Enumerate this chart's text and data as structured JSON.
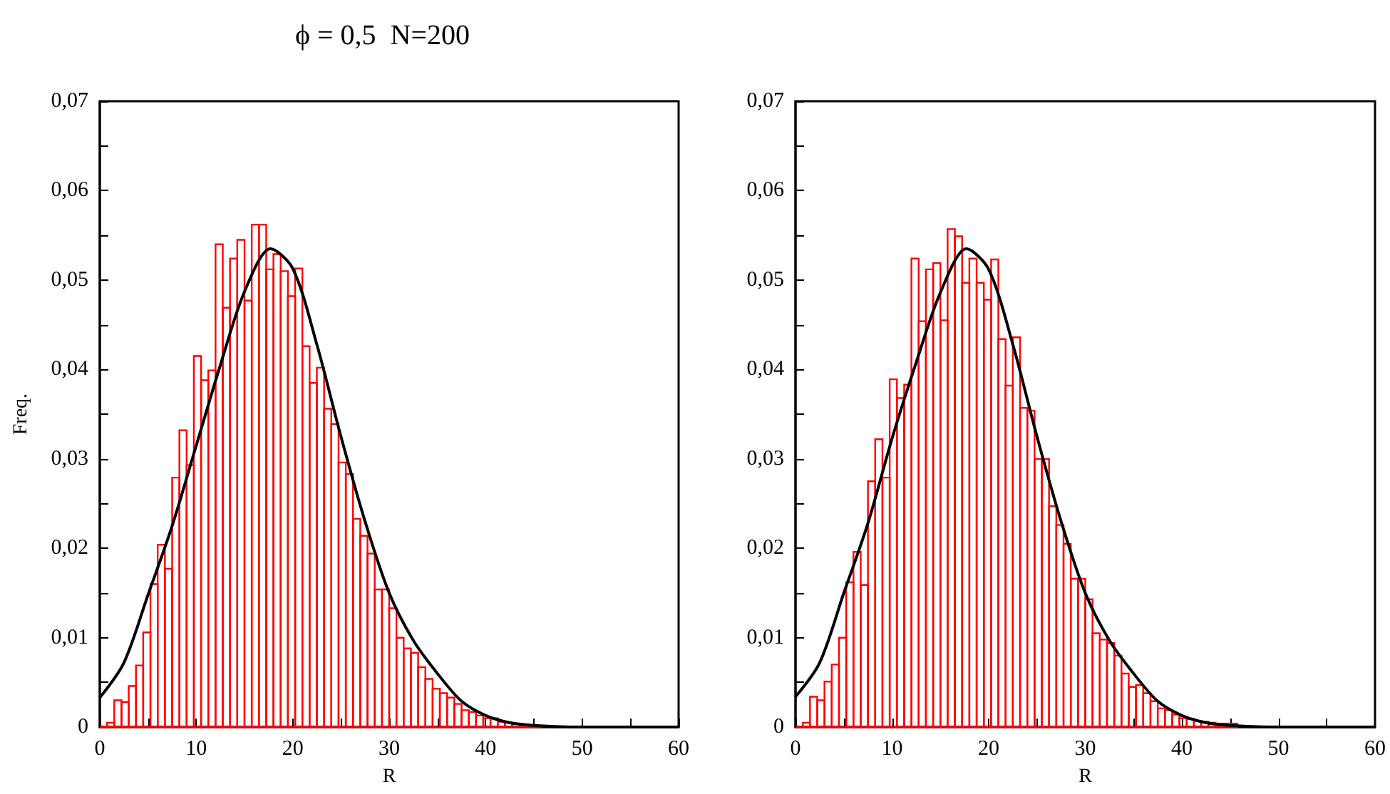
{
  "chart_data": [
    {
      "type": "histogram",
      "title": "ϕ = 0,5  N=200",
      "xlabel": "R",
      "ylabel": "Freq.",
      "xlim": [
        0,
        60
      ],
      "ylim": [
        0,
        0.07
      ],
      "grid": false,
      "xticks": [
        0,
        {
          "value": 5,
          "label": null
        },
        10,
        {
          "value": 15,
          "label": null
        },
        20,
        {
          "value": 25,
          "label": null
        },
        30,
        {
          "value": 35,
          "label": null
        },
        40,
        {
          "value": 45,
          "label": null
        },
        50,
        {
          "value": 55,
          "label": null
        },
        60
      ],
      "yticks": [
        0,
        {
          "value": 0.005,
          "label": null
        },
        {
          "value": 0.01,
          "label": "0,01"
        },
        {
          "value": 0.015,
          "label": null
        },
        {
          "value": 0.02,
          "label": "0,02"
        },
        {
          "value": 0.025,
          "label": null
        },
        {
          "value": 0.03,
          "label": "0,03"
        },
        {
          "value": 0.035,
          "label": null
        },
        {
          "value": 0.04,
          "label": "0,04"
        },
        {
          "value": 0.045,
          "label": null
        },
        {
          "value": 0.05,
          "label": "0,05"
        },
        {
          "value": 0.055,
          "label": null
        },
        {
          "value": 0.06,
          "label": "0,06"
        },
        {
          "value": 0.065,
          "label": null
        },
        {
          "value": 0.07,
          "label": "0,07"
        }
      ],
      "series": [
        {
          "type": "histogram",
          "color": "#ff0000",
          "bins": [
            0,
            0.75,
            1.5,
            2.25,
            3,
            3.75,
            4.5,
            5.25,
            6,
            6.75,
            7.5,
            8.25,
            9,
            9.75,
            10.5,
            11.25,
            12,
            12.75,
            13.5,
            14.25,
            15,
            15.75,
            16.5,
            17.25,
            18,
            18.75,
            19.5,
            20.25,
            21,
            21.75,
            22.5,
            23.25,
            24,
            24.75,
            25.5,
            26.25,
            27,
            27.75,
            28.5,
            29.25,
            30,
            30.75,
            31.5,
            32.25,
            33,
            33.75,
            34.5,
            35.25,
            36,
            36.75,
            37.5,
            38.25,
            39,
            39.75,
            40.5,
            41.25,
            42,
            42.75,
            43.5,
            44.25,
            45,
            45.75
          ],
          "values": [
            0,
            0.0005,
            0.003,
            0.0028,
            0.0046,
            0.0069,
            0.0106,
            0.016,
            0.0204,
            0.0177,
            0.0279,
            0.0332,
            0.0293,
            0.0415,
            0.0388,
            0.0399,
            0.054,
            0.0469,
            0.0524,
            0.0545,
            0.0477,
            0.0562,
            0.0562,
            0.0512,
            0.0529,
            0.051,
            0.0482,
            0.0513,
            0.0426,
            0.0385,
            0.0402,
            0.0356,
            0.0339,
            0.0296,
            0.0283,
            0.0233,
            0.0214,
            0.0194,
            0.0154,
            0.0154,
            0.0133,
            0.01,
            0.0088,
            0.0083,
            0.0067,
            0.0054,
            0.0043,
            0.0038,
            0.0033,
            0.0026,
            0.0019,
            0.0017,
            0.0013,
            0.001,
            0.001,
            0.0006,
            0.0005,
            0.0004,
            0.0003,
            0.0002,
            0.0001
          ]
        },
        {
          "type": "line",
          "color": "#000000",
          "x": [
            0,
            2.5,
            5,
            7.5,
            10,
            12.5,
            15,
            17.7,
            20,
            22.5,
            25,
            27.5,
            30,
            32.5,
            35,
            37.5,
            40,
            42.5,
            45,
            50,
            60
          ],
          "values": [
            0.0033,
            0.0072,
            0.0148,
            0.0225,
            0.0315,
            0.0405,
            0.0487,
            0.0535,
            0.0513,
            0.0428,
            0.0325,
            0.023,
            0.015,
            0.0097,
            0.006,
            0.0029,
            0.0013,
            0.0005,
            0.0002,
            0,
            0
          ]
        }
      ]
    },
    {
      "type": "histogram",
      "xlabel": "R",
      "xlim": [
        0,
        60
      ],
      "ylim": [
        0,
        0.07
      ],
      "grid": false,
      "xticks": [
        0,
        {
          "value": 5,
          "label": null
        },
        10,
        {
          "value": 15,
          "label": null
        },
        20,
        {
          "value": 25,
          "label": null
        },
        30,
        {
          "value": 35,
          "label": null
        },
        40,
        {
          "value": 45,
          "label": null
        },
        50,
        {
          "value": 55,
          "label": null
        },
        60
      ],
      "yticks": [
        0,
        {
          "value": 0.005,
          "label": null
        },
        {
          "value": 0.01,
          "label": "0,01"
        },
        {
          "value": 0.015,
          "label": null
        },
        {
          "value": 0.02,
          "label": "0,02"
        },
        {
          "value": 0.025,
          "label": null
        },
        {
          "value": 0.03,
          "label": "0,03"
        },
        {
          "value": 0.035,
          "label": null
        },
        {
          "value": 0.04,
          "label": "0,04"
        },
        {
          "value": 0.045,
          "label": null
        },
        {
          "value": 0.05,
          "label": "0,05"
        },
        {
          "value": 0.055,
          "label": null
        },
        {
          "value": 0.06,
          "label": "0,06"
        },
        {
          "value": 0.065,
          "label": null
        },
        {
          "value": 0.07,
          "label": "0,07"
        }
      ],
      "series": [
        {
          "type": "histogram",
          "color": "#ff0000",
          "bins": [
            0,
            0.75,
            1.5,
            2.25,
            3,
            3.75,
            4.5,
            5.25,
            6,
            6.75,
            7.5,
            8.25,
            9,
            9.75,
            10.5,
            11.25,
            12,
            12.75,
            13.5,
            14.25,
            15,
            15.75,
            16.5,
            17.25,
            18,
            18.75,
            19.5,
            20.25,
            21,
            21.75,
            22.5,
            23.25,
            24,
            24.75,
            25.5,
            26.25,
            27,
            27.75,
            28.5,
            29.25,
            30,
            30.75,
            31.5,
            32.25,
            33,
            33.75,
            34.5,
            35.25,
            36,
            36.75,
            37.5,
            38.25,
            39,
            39.75,
            40.5,
            41.25,
            42,
            42.75,
            43.5,
            44.25,
            45,
            45.75
          ],
          "values": [
            0,
            0.0005,
            0.0034,
            0.003,
            0.0051,
            0.007,
            0.01,
            0.0162,
            0.0196,
            0.0159,
            0.0275,
            0.0322,
            0.0279,
            0.0389,
            0.0368,
            0.0383,
            0.0524,
            0.0454,
            0.0512,
            0.0519,
            0.0455,
            0.0557,
            0.0549,
            0.0497,
            0.0524,
            0.0497,
            0.0478,
            0.0523,
            0.0434,
            0.0382,
            0.0436,
            0.0357,
            0.0354,
            0.03,
            0.03,
            0.0247,
            0.0226,
            0.0205,
            0.0166,
            0.0166,
            0.0143,
            0.0105,
            0.0098,
            0.0094,
            0.008,
            0.006,
            0.0045,
            0.0047,
            0.0038,
            0.0029,
            0.0021,
            0.0019,
            0.0014,
            0.001,
            0.0009,
            0.0007,
            0.0006,
            0.0005,
            0.0004,
            0.0004,
            0.0004
          ]
        },
        {
          "type": "line",
          "color": "#000000",
          "x": [
            0,
            2.5,
            5,
            7.5,
            10,
            12.5,
            15,
            17.7,
            20,
            22.5,
            25,
            27.5,
            30,
            32.5,
            35,
            37.5,
            40,
            42.5,
            45,
            50,
            60
          ],
          "values": [
            0.0034,
            0.0072,
            0.015,
            0.0228,
            0.0323,
            0.0408,
            0.0486,
            0.0535,
            0.0512,
            0.0428,
            0.0325,
            0.023,
            0.015,
            0.0097,
            0.006,
            0.0029,
            0.0013,
            0.0005,
            0.0002,
            0,
            0
          ]
        }
      ]
    }
  ]
}
